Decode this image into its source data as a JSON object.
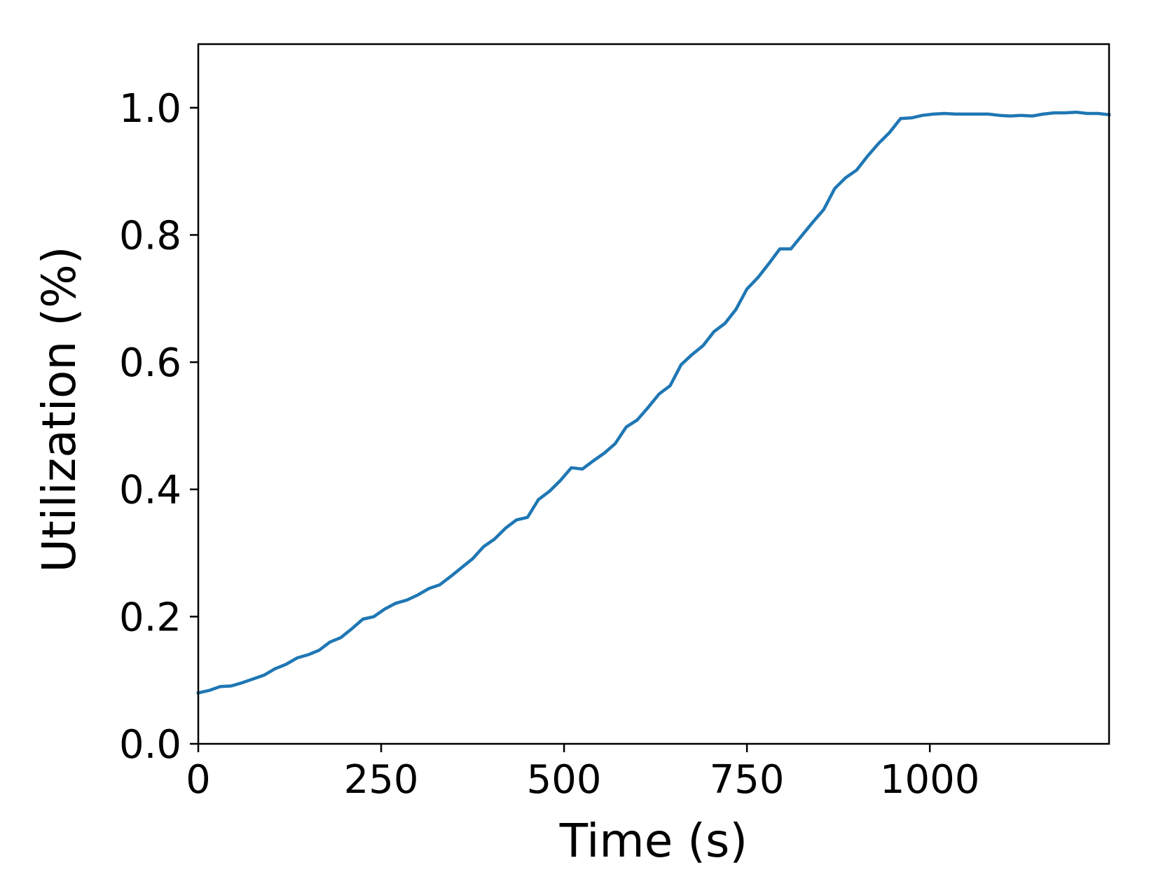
{
  "chart_data": {
    "type": "line",
    "title": "",
    "xlabel": "Time (s)",
    "ylabel": "Utilization (%)",
    "xlim": [
      0,
      1245
    ],
    "ylim": [
      0,
      1.1
    ],
    "xticks": [
      0,
      250,
      500,
      750,
      1000
    ],
    "xtick_labels": [
      "0",
      "250",
      "500",
      "750",
      "1000"
    ],
    "yticks": [
      0.0,
      0.2,
      0.4,
      0.6,
      0.8,
      1.0
    ],
    "ytick_labels": [
      "0.0",
      "0.2",
      "0.4",
      "0.6",
      "0.8",
      "1.0"
    ],
    "grid": false,
    "legend": "none",
    "colors": {
      "line": "#1f77b4",
      "axes": "#000000",
      "background": "#ffffff"
    },
    "series": [
      {
        "x": [
          0,
          15,
          30,
          45,
          60,
          75,
          90,
          105,
          120,
          135,
          150,
          165,
          180,
          195,
          210,
          225,
          240,
          255,
          270,
          285,
          300,
          315,
          330,
          345,
          360,
          375,
          390,
          405,
          420,
          435,
          450,
          465,
          480,
          495,
          510,
          525,
          540,
          555,
          570,
          585,
          600,
          615,
          630,
          645,
          660,
          675,
          690,
          705,
          720,
          735,
          750,
          765,
          780,
          795,
          810,
          825,
          840,
          855,
          870,
          885,
          900,
          915,
          930,
          945,
          960,
          975,
          990,
          1005,
          1020,
          1035,
          1050,
          1065,
          1080,
          1095,
          1110,
          1125,
          1140,
          1155,
          1170,
          1185,
          1200,
          1215,
          1230,
          1245
        ],
        "y": [
          0.08,
          0.084,
          0.09,
          0.091,
          0.096,
          0.102,
          0.108,
          0.118,
          0.125,
          0.135,
          0.14,
          0.147,
          0.16,
          0.167,
          0.181,
          0.196,
          0.2,
          0.212,
          0.221,
          0.226,
          0.234,
          0.244,
          0.25,
          0.263,
          0.277,
          0.291,
          0.31,
          0.322,
          0.339,
          0.352,
          0.356,
          0.384,
          0.397,
          0.414,
          0.434,
          0.432,
          0.445,
          0.457,
          0.472,
          0.498,
          0.509,
          0.529,
          0.55,
          0.563,
          0.596,
          0.612,
          0.626,
          0.648,
          0.661,
          0.683,
          0.715,
          0.733,
          0.755,
          0.778,
          0.778,
          0.799,
          0.82,
          0.84,
          0.873,
          0.89,
          0.902,
          0.924,
          0.944,
          0.961,
          0.983,
          0.984,
          0.988,
          0.99,
          0.991,
          0.99,
          0.99,
          0.99,
          0.99,
          0.988,
          0.987,
          0.988,
          0.987,
          0.99,
          0.992,
          0.992,
          0.993,
          0.991,
          0.991,
          0.989
        ]
      }
    ]
  }
}
